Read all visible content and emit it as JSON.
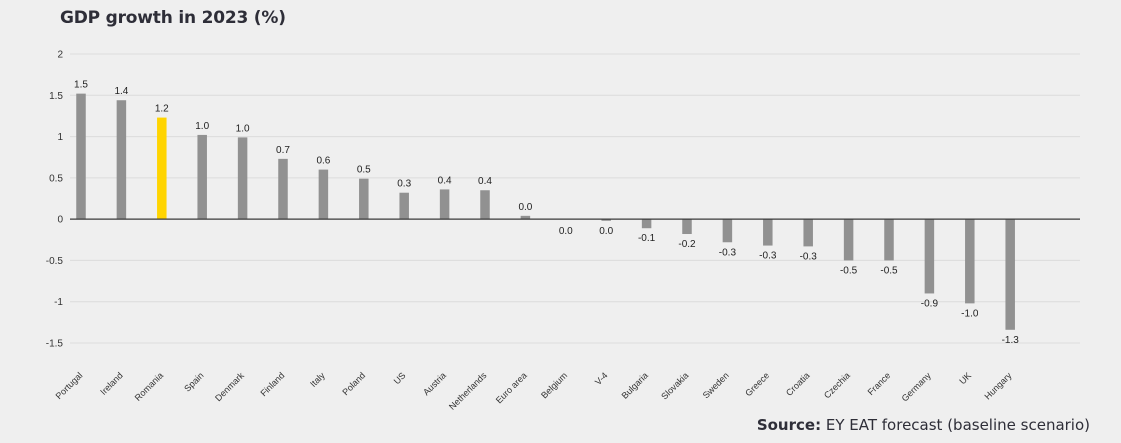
{
  "chart_data": {
    "type": "bar",
    "title": "GDP growth in 2023 (%)",
    "xlabel": "",
    "ylabel": "",
    "ylim": [
      -1.5,
      2
    ],
    "yticks": [
      2,
      1.5,
      1,
      0.5,
      0,
      -0.5,
      -1,
      -1.5
    ],
    "ytick_labels": [
      "2",
      "1.5",
      "1",
      "0.5",
      "0",
      "-0.5",
      "-1",
      "-1.5"
    ],
    "grid": true,
    "legend": "none",
    "bar_color": "#919191",
    "highlight_color": "#ffd400",
    "highlight_category": "Romania",
    "categories": [
      "Portugal",
      "Ireland",
      "Romania",
      "Spain",
      "Denmark",
      "Finland",
      "Italy",
      "Poland",
      "US",
      "Austria",
      "Netherlands",
      "Euro area",
      "Belgium",
      "V-4",
      "Bulgaria",
      "Slovakia",
      "Sweden",
      "Greece",
      "Croatia",
      "Czechia",
      "France",
      "Germany",
      "UK",
      "Hungary"
    ],
    "values": [
      1.52,
      1.44,
      1.23,
      1.02,
      0.99,
      0.73,
      0.6,
      0.49,
      0.32,
      0.36,
      0.35,
      0.04,
      0.0,
      -0.02,
      -0.11,
      -0.18,
      -0.28,
      -0.32,
      -0.33,
      -0.5,
      -0.5,
      -0.9,
      -1.02,
      -1.34
    ],
    "data_labels": [
      "1.5",
      "1.4",
      "1.2",
      "1.0",
      "1.0",
      "0.7",
      "0.6",
      "0.5",
      "0.3",
      "0.4",
      "0.4",
      "0.0",
      "0.0",
      "0.0",
      "-0.1",
      "-0.2",
      "-0.3",
      "-0.3",
      "-0.3",
      "-0.5",
      "-0.5",
      "-0.9",
      "-1.0",
      "-1.3"
    ]
  },
  "source": {
    "label": "Source:",
    "text": "EY EAT forecast (baseline scenario)"
  }
}
